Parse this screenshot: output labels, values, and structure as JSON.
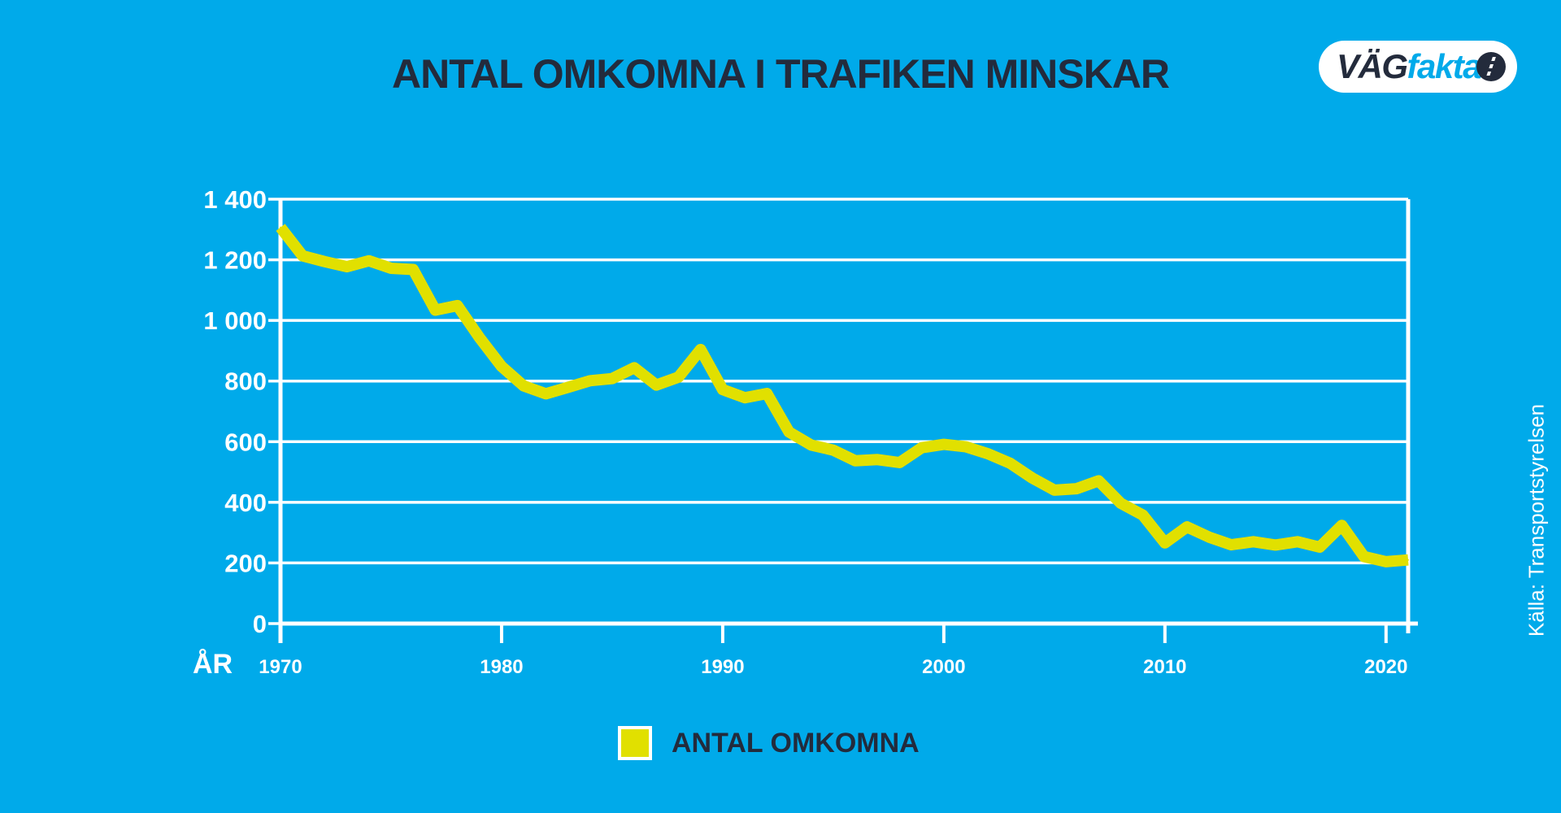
{
  "logo": {
    "part1": "VÄG",
    "part2": "fakta"
  },
  "legend": {
    "label": "ANTAL OMKOMNA"
  },
  "source": "Källa: Transportstyrelsen",
  "colors": {
    "background": "#00aaea",
    "line": "#e1e000",
    "grid": "#ffffff",
    "title": "#232b3c"
  },
  "chart_data": {
    "type": "line",
    "title": "ANTAL OMKOMNA I TRAFIKEN MINSKAR",
    "xlabel": "ÅR",
    "ylabel": "",
    "ylim": [
      0,
      1400
    ],
    "xlim": [
      1970,
      2021
    ],
    "grid": true,
    "legend_position": "bottom",
    "yticks": [
      0,
      200,
      400,
      600,
      800,
      1000,
      1200,
      1400
    ],
    "ytick_labels": [
      "0",
      "200",
      "400",
      "600",
      "800",
      "1 000",
      "1 200",
      "1 400"
    ],
    "xticks": [
      1970,
      1980,
      1990,
      2000,
      2010,
      2020
    ],
    "xtick_labels": [
      "1970",
      "1980",
      "1990",
      "2000",
      "2010",
      "2020"
    ],
    "series": [
      {
        "name": "ANTAL OMKOMNA",
        "x": [
          1970,
          1971,
          1972,
          1973,
          1974,
          1975,
          1976,
          1977,
          1978,
          1979,
          1980,
          1981,
          1982,
          1983,
          1984,
          1985,
          1986,
          1987,
          1988,
          1989,
          1990,
          1991,
          1992,
          1993,
          1994,
          1995,
          1996,
          1997,
          1998,
          1999,
          2000,
          2001,
          2002,
          2003,
          2004,
          2005,
          2006,
          2007,
          2008,
          2009,
          2010,
          2011,
          2012,
          2013,
          2014,
          2015,
          2016,
          2017,
          2018,
          2019,
          2020,
          2021
        ],
        "values": [
          1307,
          1213,
          1194,
          1177,
          1197,
          1172,
          1168,
          1034,
          1049,
          943,
          848,
          784,
          758,
          779,
          801,
          808,
          844,
          787,
          813,
          904,
          772,
          745,
          759,
          632,
          589,
          572,
          537,
          541,
          531,
          580,
          591,
          583,
          560,
          529,
          480,
          440,
          445,
          471,
          397,
          358,
          266,
          319,
          285,
          260,
          270,
          259,
          270,
          252,
          324,
          221,
          204,
          210
        ]
      }
    ]
  }
}
